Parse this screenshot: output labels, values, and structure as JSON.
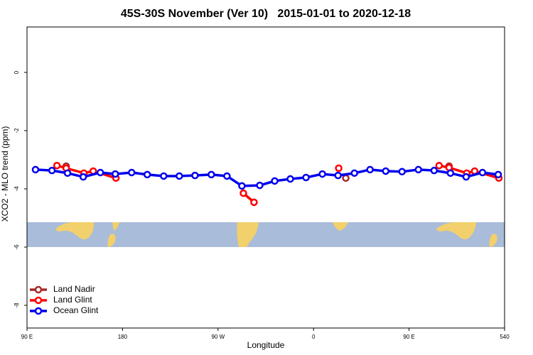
{
  "chart_data": {
    "type": "line",
    "title": "45S-30S November (Ver 10)   2015-01-01 to 2020-12-18",
    "x_label": "Longitude",
    "y_label": "XCO2 - MLO trend (ppm)",
    "xlim": [
      90,
      540
    ],
    "ylim": [
      -8.78,
      1.56
    ],
    "xticks": [
      {
        "value": 90,
        "label": "90 E"
      },
      180,
      {
        "value": 270,
        "label": "90 W"
      },
      {
        "value": 360,
        "label": "0"
      },
      {
        "value": 450,
        "label": "90 E"
      },
      540
    ],
    "yticks": [
      0,
      -2,
      -4,
      -6,
      -8
    ],
    "legend": "bottom-left",
    "series": [
      {
        "name": "Land Nadir",
        "color": "#a52a2a",
        "x": [
          126.9,
          250,
          390.4,
          450,
          487.7
        ],
        "values": [
          -3.22,
          null,
          -3.63,
          null,
          -3.22
        ]
      },
      {
        "name": "Land Glint",
        "color": "#ff0000",
        "x": [
          118.2,
          126.9,
          143.6,
          152.4,
          173.8,
          230,
          293.9,
          303.9,
          340,
          383.7,
          430,
          478.3,
          487.7,
          504.4,
          511.8,
          534.6
        ],
        "values": [
          -3.2,
          -3.29,
          -3.46,
          -3.39,
          -3.63,
          null,
          -4.15,
          -4.46,
          null,
          -3.29,
          null,
          -3.2,
          -3.27,
          -3.46,
          -3.39,
          -3.63
        ]
      },
      {
        "name": "Ocean Glint",
        "color": "#0000ee",
        "x": [
          98.0,
          113.5,
          128.2,
          143.0,
          159.1,
          173.2,
          188.6,
          203.3,
          218.8,
          233.5,
          248.3,
          263.7,
          278.4,
          292.5,
          309.3,
          323.4,
          338.1,
          352.9,
          368.3,
          383.1,
          398.5,
          413.2,
          428.0,
          443.4,
          458.8,
          473.6,
          489.0,
          503.8,
          519.2,
          534.0
        ],
        "values": [
          -3.34,
          -3.37,
          -3.46,
          -3.59,
          -3.44,
          -3.49,
          -3.44,
          -3.51,
          -3.56,
          -3.56,
          -3.54,
          -3.51,
          -3.56,
          -3.9,
          -3.88,
          -3.73,
          -3.66,
          -3.61,
          -3.49,
          -3.54,
          -3.46,
          -3.34,
          -3.39,
          -3.41,
          -3.34,
          -3.37,
          -3.46,
          -3.59,
          -3.44,
          -3.51
        ]
      }
    ]
  }
}
